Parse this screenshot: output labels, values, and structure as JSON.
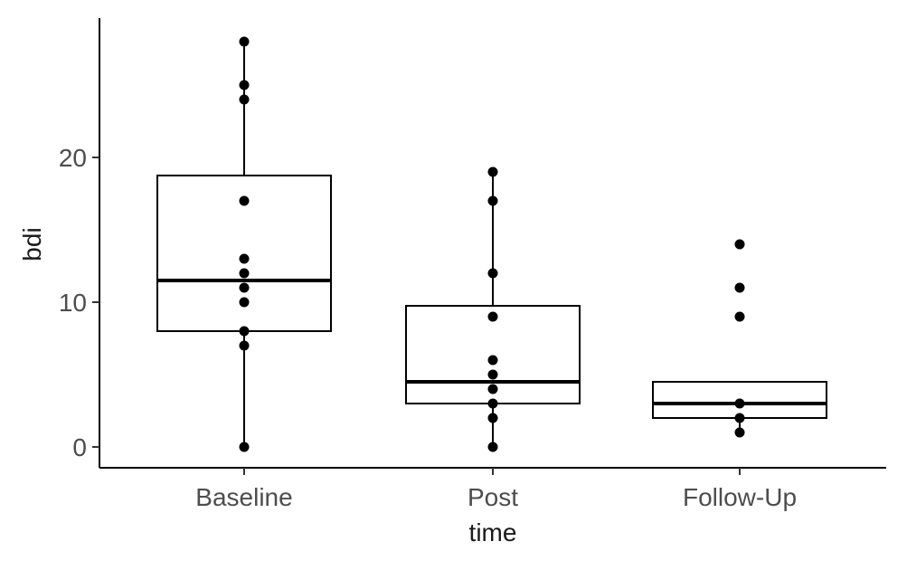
{
  "chart_data": {
    "type": "boxplot",
    "xlabel": "time",
    "ylabel": "bdi",
    "categories": [
      "Baseline",
      "Post",
      "Follow-Up"
    ],
    "yticks": [
      0,
      10,
      20
    ],
    "ylim": [
      -1.4,
      29.5
    ],
    "grid": false,
    "boxes": [
      {
        "category": "Baseline",
        "q1": 8,
        "median": 11.5,
        "q3": 18.75,
        "whisker_low": 0,
        "whisker_high": 28
      },
      {
        "category": "Post",
        "q1": 3,
        "median": 4.5,
        "q3": 9.75,
        "whisker_low": 0,
        "whisker_high": 19
      },
      {
        "category": "Follow-Up",
        "q1": 2,
        "median": 3,
        "q3": 4.5,
        "whisker_low": 1,
        "whisker_high": 4.5
      }
    ],
    "points": [
      {
        "category": "Baseline",
        "values": [
          28,
          25,
          24,
          17,
          13,
          12,
          11,
          10,
          8,
          7,
          0
        ]
      },
      {
        "category": "Post",
        "values": [
          19,
          17,
          12,
          9,
          6,
          5,
          4,
          3,
          2,
          0
        ]
      },
      {
        "category": "Follow-Up",
        "values": [
          14,
          11,
          9,
          3,
          2,
          1
        ]
      }
    ]
  }
}
